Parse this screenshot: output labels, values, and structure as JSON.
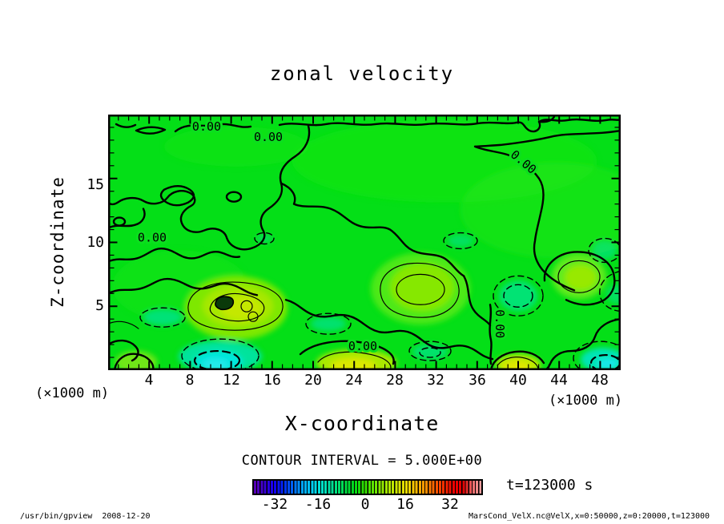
{
  "title": "zonal velocity",
  "axes": {
    "x": {
      "label": "X-coordinate",
      "unit": "(×1000 m)",
      "ticks": [
        "4",
        "8",
        "12",
        "16",
        "20",
        "24",
        "28",
        "32",
        "36",
        "40",
        "44",
        "48"
      ]
    },
    "y": {
      "label": "Z-coordinate",
      "unit": "(×1000 m)",
      "ticks": [
        "15",
        "10",
        "5"
      ]
    }
  },
  "plot": {
    "contour_labels": [
      "0.00",
      "0.00",
      "0.00",
      "0.00",
      "0.00",
      "0.00"
    ]
  },
  "legend": {
    "contour_interval": "CONTOUR INTERVAL = 5.000E+00",
    "time": "t=123000 s",
    "colorbar_ticks": [
      "-32",
      "-16",
      "0",
      "16",
      "32"
    ]
  },
  "footer": {
    "left": "/usr/bin/gpview  2008-12-20",
    "right": "MarsCond_VelX.nc@VelX,x=0:50000,z=0:20000,t=123000"
  },
  "colors": {
    "field_green": "#04DF17",
    "negative_cyan": "#00E6DC",
    "positive_yellow": "#DCE800",
    "contour_line": "#000000",
    "page_bg": "#FFFFFF"
  },
  "chart_data": {
    "type": "contour",
    "title": "zonal velocity",
    "variable": "VelX (zonal velocity)",
    "xlabel": "X-coordinate (×1000 m)",
    "ylabel": "Z-coordinate (×1000 m)",
    "xlim": [
      0,
      50
    ],
    "ylim": [
      0,
      20
    ],
    "x_ticks": [
      4,
      8,
      12,
      16,
      20,
      24,
      28,
      32,
      36,
      40,
      44,
      48
    ],
    "y_ticks": [
      5,
      10,
      15
    ],
    "contour_interval": 5.0,
    "labeled_contour_level": 0.0,
    "negative_contour_style": "dashed",
    "colorbar": {
      "ticks": [
        -32,
        -16,
        0,
        16,
        32
      ],
      "range_approx": [
        -41,
        42
      ],
      "palette": [
        "#5800B0",
        "#0028FF",
        "#00A0FF",
        "#00E0E0",
        "#00E080",
        "#00D818",
        "#58E400",
        "#B4E800",
        "#F0D800",
        "#FF8C00",
        "#FF2800",
        "#E00000",
        "#F4A4A4"
      ]
    },
    "time": "t=123000 s",
    "field_summary": "Zonal velocity mostly within ±5 m/s (green). The 0.00 contour meanders along the top and mid-levels. Positive cells up to ~+15 (yellow-green) near z≈2–5 ×1000 m at x≈10–18, 25–33 and 36–40 ×1000 m. Negative pockets (cyan, dashed contours) near the surface at x≈9–15, 20–26, 36–42 and 46–50 ×1000 m."
  }
}
